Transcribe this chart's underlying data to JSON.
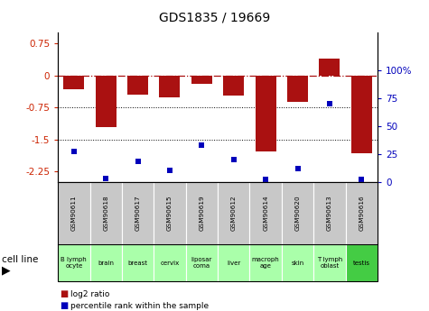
{
  "title": "GDS1835 / 19669",
  "gsm_labels": [
    "GSM90611",
    "GSM90618",
    "GSM90617",
    "GSM90615",
    "GSM90619",
    "GSM90612",
    "GSM90614",
    "GSM90620",
    "GSM90613",
    "GSM90616"
  ],
  "cell_labels": [
    "B lymph\nocyte",
    "brain",
    "breast",
    "cervix",
    "liposarcoma\n",
    "liver",
    "macroph\nage",
    "skin",
    "T lymph\noblast",
    "testis"
  ],
  "cell_label_short": [
    "B lymph\nocyte",
    "brain",
    "breast",
    "cervix",
    "liposar\ncoma",
    "liver",
    "macroph\nage",
    "skin",
    "T lymph\noblast",
    "testis"
  ],
  "log2_ratio": [
    -0.32,
    -1.22,
    -0.45,
    -0.52,
    -0.2,
    -0.48,
    -1.78,
    -0.62,
    0.4,
    -1.82
  ],
  "percentile_rank": [
    27,
    3,
    18,
    10,
    33,
    20,
    2,
    12,
    70,
    2
  ],
  "ylim_left": [
    -2.5,
    1.0
  ],
  "ylim_right": [
    0,
    133.33
  ],
  "yticks_left": [
    -2.25,
    -1.5,
    -0.75,
    0,
    0.75
  ],
  "ytick_labels_left": [
    "-2.25",
    "-1.5",
    "-0.75",
    "0",
    "0.75"
  ],
  "yticks_right": [
    0,
    25,
    50,
    75,
    100
  ],
  "ytick_labels_right": [
    "0",
    "25",
    "50",
    "75",
    "100%"
  ],
  "bar_color": "#aa1111",
  "dot_color": "#0000bb",
  "hline_y": 0,
  "dotted_lines": [
    -0.75,
    -1.5
  ],
  "legend_red": "log2 ratio",
  "legend_blue": "percentile rank within the sample",
  "xlabel_left": "cell line",
  "bg_color_gsm": "#c8c8c8",
  "bg_color_cell_light": "#aaffaa",
  "bg_color_cell_green": "#44cc44"
}
